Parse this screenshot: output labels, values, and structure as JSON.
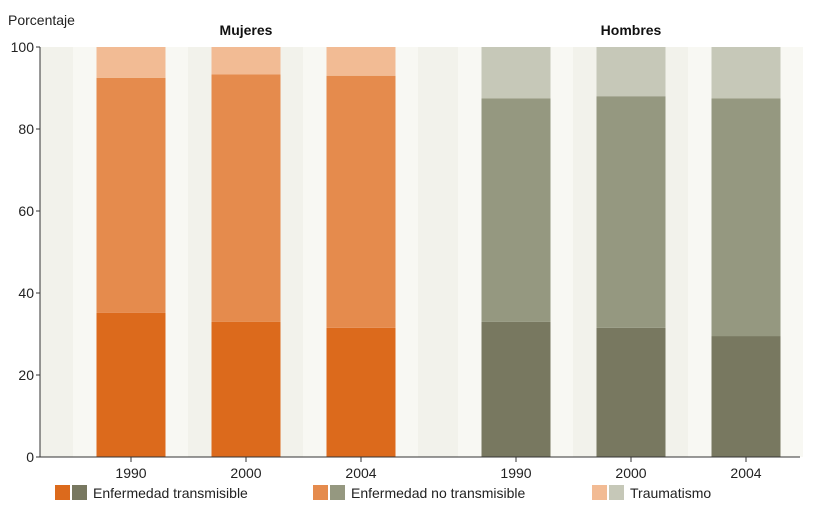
{
  "chart_data": {
    "type": "bar",
    "stacked": true,
    "ylabel": "Porcentaje",
    "ylim": [
      0,
      100
    ],
    "yticks": [
      0,
      20,
      40,
      60,
      80,
      100
    ],
    "grid": false,
    "legend_position": "bottom",
    "groups": [
      {
        "title": "Mujeres",
        "categories": [
          "1990",
          "2000",
          "2004"
        ],
        "series": [
          {
            "key": "transmisible",
            "color": "#dc6a1c",
            "values": [
              35.2,
              33.0,
              31.5
            ]
          },
          {
            "key": "no_transmisible",
            "color": "#e58b4d",
            "values": [
              57.3,
              60.3,
              61.5
            ]
          },
          {
            "key": "traumatismo",
            "color": "#f2bb94",
            "values": [
              7.5,
              6.7,
              7.0
            ]
          }
        ]
      },
      {
        "title": "Hombres",
        "categories": [
          "1990",
          "2000",
          "2004"
        ],
        "series": [
          {
            "key": "transmisible",
            "color": "#787860",
            "values": [
              33.0,
              31.5,
              29.5
            ]
          },
          {
            "key": "no_transmisible",
            "color": "#959880",
            "values": [
              54.5,
              56.5,
              58.0
            ]
          },
          {
            "key": "traumatismo",
            "color": "#c6c8b8",
            "values": [
              12.5,
              12.0,
              12.5
            ]
          }
        ]
      }
    ],
    "legend": [
      {
        "label": "Enfermedad transmisible",
        "colors": [
          "#dc6a1c",
          "#787860"
        ]
      },
      {
        "label": "Enfermedad no transmisible",
        "colors": [
          "#e58b4d",
          "#959880"
        ]
      },
      {
        "label": "Traumatismo",
        "colors": [
          "#f2bb94",
          "#c6c8b8"
        ]
      }
    ],
    "colors": {
      "background": "#ffffff",
      "panel": "#f2f2eb",
      "axis": "#333333"
    }
  }
}
